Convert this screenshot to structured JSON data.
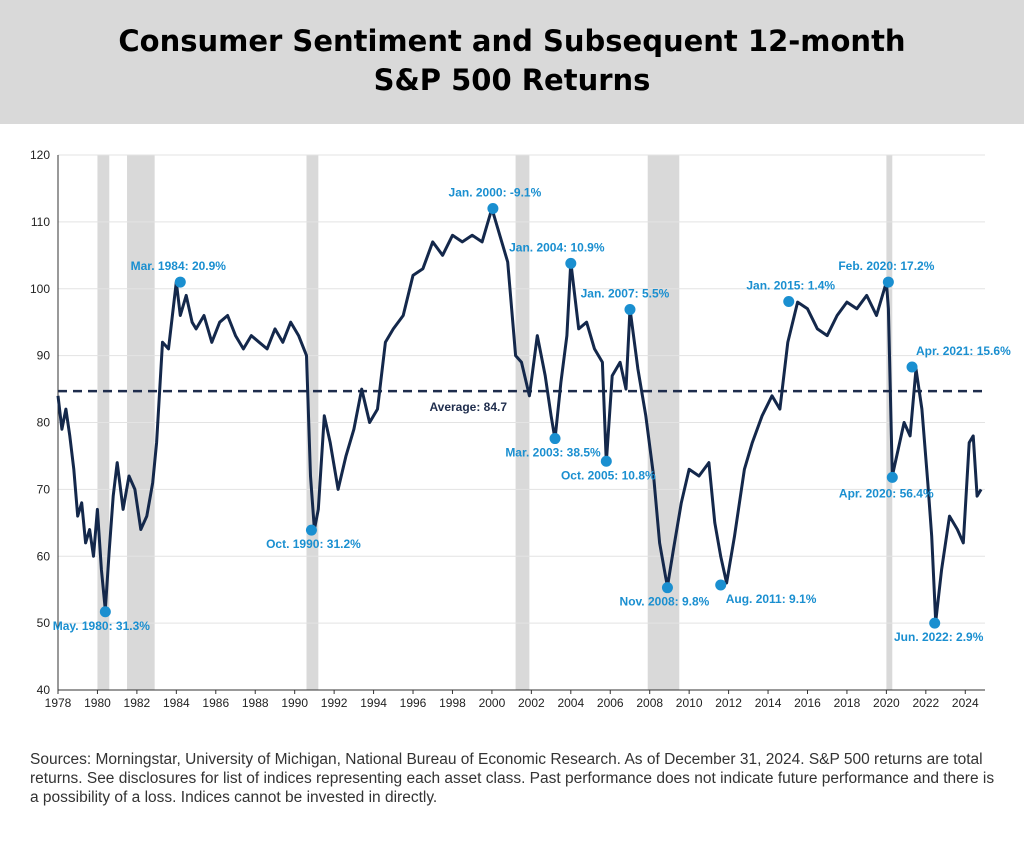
{
  "header": {
    "title_line1": "Consumer Sentiment and Subsequent 12-month",
    "title_line2": "S&P 500 Returns"
  },
  "footnote": "Sources: Morningstar, University of Michigan, National Bureau of Economic Research. As of December 31, 2024. S&P 500 returns are total returns. See disclosures for list of indices representing each asset class. Past performance does not indicate future performance and there is a possibility of a loss. Indices cannot be invested in directly.",
  "colors": {
    "line": "#14284b",
    "marker": "#1a8fd0",
    "recession": "#d9d9d9",
    "average": "#1f2d4d"
  },
  "chart_data": {
    "type": "line",
    "xlim": [
      1978,
      2025
    ],
    "ylim": [
      40,
      120
    ],
    "x_ticks": [
      "1978",
      "1980",
      "1982",
      "1984",
      "1986",
      "1988",
      "1990",
      "1992",
      "1994",
      "1996",
      "1998",
      "2000",
      "2002",
      "2004",
      "2006",
      "2008",
      "2010",
      "2012",
      "2014",
      "2016",
      "2018",
      "2020",
      "2022",
      "2024"
    ],
    "y_ticks": [
      "40",
      "50",
      "60",
      "70",
      "80",
      "90",
      "100",
      "110",
      "120"
    ],
    "grid": "horizontal",
    "average": {
      "value": 84.7,
      "label": "Average: 84.7"
    },
    "recessions": [
      [
        1980.0,
        1980.6
      ],
      [
        1981.5,
        1982.9
      ],
      [
        1990.6,
        1991.2
      ],
      [
        2001.2,
        2001.9
      ],
      [
        2007.9,
        2009.5
      ],
      [
        2020.0,
        2020.3
      ]
    ],
    "series": [
      {
        "x": [
          1978.0,
          1978.2,
          1978.4,
          1978.6,
          1978.8,
          1979.0,
          1979.2,
          1979.4,
          1979.6,
          1979.8,
          1980.0,
          1980.2,
          1980.4,
          1980.6,
          1980.8,
          1981.0,
          1981.3,
          1981.6,
          1981.9,
          1982.2,
          1982.5,
          1982.8,
          1983.0,
          1983.3,
          1983.6,
          1984.0,
          1984.2,
          1984.5,
          1984.8,
          1985.0,
          1985.4,
          1985.8,
          1986.2,
          1986.6,
          1987.0,
          1987.4,
          1987.8,
          1988.2,
          1988.6,
          1989.0,
          1989.4,
          1989.8,
          1990.2,
          1990.6,
          1990.8,
          1991.0,
          1991.2,
          1991.5,
          1991.8,
          1992.2,
          1992.6,
          1993.0,
          1993.4,
          1993.8,
          1994.2,
          1994.6,
          1995.0,
          1995.5,
          1996.0,
          1996.5,
          1997.0,
          1997.5,
          1998.0,
          1998.5,
          1999.0,
          1999.5,
          2000.0,
          2000.4,
          2000.8,
          2001.2,
          2001.5,
          2001.9,
          2002.3,
          2002.7,
          2003.0,
          2003.2,
          2003.5,
          2003.8,
          2004.0,
          2004.4,
          2004.8,
          2005.2,
          2005.6,
          2005.8,
          2006.1,
          2006.5,
          2006.8,
          2007.0,
          2007.4,
          2007.8,
          2008.2,
          2008.5,
          2008.8,
          2008.9,
          2009.2,
          2009.6,
          2010.0,
          2010.5,
          2011.0,
          2011.3,
          2011.6,
          2011.9,
          2012.3,
          2012.8,
          2013.2,
          2013.7,
          2014.2,
          2014.6,
          2015.0,
          2015.5,
          2016.0,
          2016.5,
          2017.0,
          2017.5,
          2018.0,
          2018.5,
          2019.0,
          2019.5,
          2020.0,
          2020.1,
          2020.3,
          2020.6,
          2020.9,
          2021.2,
          2021.5,
          2021.8,
          2022.1,
          2022.3,
          2022.5,
          2022.8,
          2023.2,
          2023.6,
          2023.9,
          2024.2,
          2024.4,
          2024.6,
          2024.8
        ],
        "y": [
          84,
          79,
          82,
          78,
          73,
          66,
          68,
          62,
          64,
          60,
          67,
          58,
          52,
          61,
          69,
          74,
          67,
          72,
          70,
          64,
          66,
          71,
          77,
          92,
          91,
          101,
          96,
          99,
          95,
          94,
          96,
          92,
          95,
          96,
          93,
          91,
          93,
          92,
          91,
          94,
          92,
          95,
          93,
          90,
          72,
          64,
          67,
          81,
          77,
          70,
          75,
          79,
          85,
          80,
          82,
          92,
          94,
          96,
          102,
          103,
          107,
          105,
          108,
          107,
          108,
          107,
          112,
          108,
          104,
          90,
          89,
          84,
          93,
          87,
          81,
          77.5,
          86,
          93,
          104,
          94,
          95,
          91,
          89,
          74,
          87,
          89,
          85,
          97,
          88,
          81,
          72,
          62,
          57,
          55.5,
          61,
          68,
          73,
          72,
          74,
          65,
          60,
          56,
          63,
          73,
          77,
          81,
          84,
          82,
          92,
          98,
          97,
          94,
          93,
          96,
          98,
          97,
          99,
          96,
          101,
          97,
          72,
          76,
          80,
          78,
          88,
          82,
          71,
          63,
          50.2,
          58,
          66,
          64,
          62,
          77,
          78,
          69,
          70
        ],
        "markers": [
          {
            "x": 1980.4,
            "y": 51.7,
            "label": "May. 1980: 31.3%"
          },
          {
            "x": 1984.2,
            "y": 101.0,
            "label": "Mar. 1984: 20.9%"
          },
          {
            "x": 1990.85,
            "y": 63.9,
            "label": "Oct. 1990: 31.2%"
          },
          {
            "x": 2000.05,
            "y": 112.0,
            "label": "Jan. 2000: -9.1%"
          },
          {
            "x": 2003.2,
            "y": 77.6,
            "label": "Mar. 2003: 38.5%"
          },
          {
            "x": 2004.0,
            "y": 103.8,
            "label": "Jan. 2004: 10.9%"
          },
          {
            "x": 2005.8,
            "y": 74.2,
            "label": "Oct. 2005: 10.8%"
          },
          {
            "x": 2007.0,
            "y": 96.9,
            "label": "Jan. 2007: 5.5%"
          },
          {
            "x": 2008.9,
            "y": 55.3,
            "label": "Nov. 2008: 9.8%"
          },
          {
            "x": 2011.6,
            "y": 55.7,
            "label": "Aug. 2011: 9.1%"
          },
          {
            "x": 2015.05,
            "y": 98.1,
            "label": "Jan. 2015: 1.4%"
          },
          {
            "x": 2020.1,
            "y": 101.0,
            "label": "Feb. 2020: 17.2%"
          },
          {
            "x": 2020.3,
            "y": 71.8,
            "label": "Apr. 2020: 56.4%"
          },
          {
            "x": 2021.3,
            "y": 88.3,
            "label": "Apr. 2021: 15.6%"
          },
          {
            "x": 2022.45,
            "y": 50.0,
            "label": "Jun. 2022: 2.9%"
          }
        ]
      }
    ]
  }
}
